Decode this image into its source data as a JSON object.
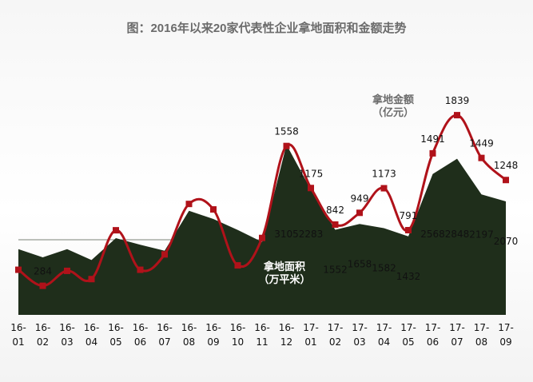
{
  "title": "图：2016年以来20家代表性企业拿地面积和金额走势",
  "chart_data": {
    "type": "line",
    "title": "图：2016年以来20家代表性企业拿地面积和金额走势",
    "categories": [
      [
        "16-",
        "01"
      ],
      [
        "16-",
        "02"
      ],
      [
        "16-",
        "03"
      ],
      [
        "16-",
        "04"
      ],
      [
        "16-",
        "05"
      ],
      [
        "16-",
        "06"
      ],
      [
        "16-",
        "07"
      ],
      [
        "16-",
        "08"
      ],
      [
        "16-",
        "09"
      ],
      [
        "16-",
        "10"
      ],
      [
        "16-",
        "11"
      ],
      [
        "16-",
        "12"
      ],
      [
        "17-",
        "01"
      ],
      [
        "17-",
        "02"
      ],
      [
        "17-",
        "03"
      ],
      [
        "17-",
        "04"
      ],
      [
        "17-",
        "05"
      ],
      [
        "17-",
        "06"
      ],
      [
        "17-",
        "07"
      ],
      [
        "17-",
        "08"
      ],
      [
        "17-",
        "09"
      ]
    ],
    "series": [
      {
        "name": "拿地金额\n（亿元）",
        "type": "line",
        "color": "#b0121a",
        "values": [
          430,
          284,
          420,
          345,
          790,
          430,
          570,
          1030,
          980,
          470,
          720,
          1558,
          1175,
          842,
          949,
          1173,
          791,
          1491,
          1839,
          1449,
          1248
        ],
        "labels": [
          "",
          "284",
          "",
          "",
          "",
          "",
          "",
          "",
          "",
          "",
          "",
          "1558",
          "1175",
          "842",
          "949",
          "1173",
          "791",
          "1491",
          "1839",
          "1449",
          "1248"
        ]
      },
      {
        "name": "拿地面积\n（万平米）",
        "type": "area",
        "color": "#1f2e1b",
        "values": [
          1200,
          1050,
          1200,
          1000,
          1400,
          1280,
          1170,
          1900,
          1750,
          1550,
          1330,
          3105,
          2283,
          1552,
          1658,
          1582,
          1432,
          2568,
          2848,
          2197,
          2070
        ],
        "labels": [
          "",
          "",
          "",
          "",
          "",
          "",
          "",
          "",
          "",
          "",
          "",
          "3105",
          "2283",
          "1552",
          "1658",
          "1582",
          "1432",
          "2568",
          "2848",
          "2197",
          "2070"
        ]
      }
    ],
    "grid": true,
    "legend": "inline"
  }
}
